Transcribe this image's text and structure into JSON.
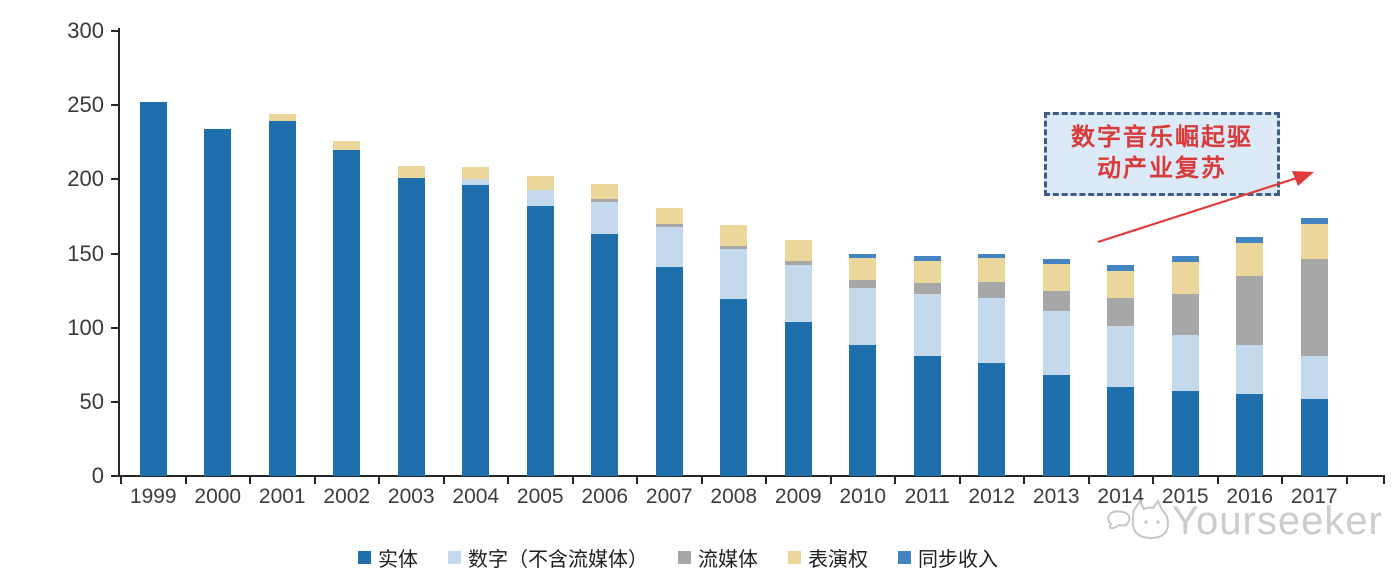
{
  "watermark": {
    "brand": "Yourseeker"
  },
  "annotation": {
    "line1": "数字音乐崛起驱",
    "line2": "动产业复苏",
    "text_color": "#d93a3a",
    "box_fill": "#dce9f6",
    "box_border": "#3f5e84",
    "arrow_color": "#e23b3b"
  },
  "chart_data": {
    "type": "bar",
    "stacked": true,
    "title": "",
    "xlabel": "",
    "ylabel": "",
    "ylim": [
      0,
      300
    ],
    "yticks": [
      0,
      50,
      100,
      150,
      200,
      250,
      300
    ],
    "grid": false,
    "legend_position": "bottom",
    "categories": [
      "1999",
      "2000",
      "2001",
      "2002",
      "2003",
      "2004",
      "2005",
      "2006",
      "2007",
      "2008",
      "2009",
      "2010",
      "2011",
      "2012",
      "2013",
      "2014",
      "2015",
      "2016",
      "2017"
    ],
    "series": [
      {
        "name": "实体",
        "color": "#1f6fac",
        "values": [
          252,
          234,
          239,
          220,
          201,
          196,
          182,
          163,
          141,
          119,
          104,
          88,
          81,
          76,
          68,
          60,
          57,
          55,
          52
        ]
      },
      {
        "name": "数字（不含流媒体）",
        "color": "#c4d9ec",
        "values": [
          0,
          0,
          0,
          0,
          0,
          4,
          11,
          22,
          27,
          34,
          38,
          39,
          42,
          44,
          43,
          41,
          38,
          33,
          29
        ]
      },
      {
        "name": "流媒体",
        "color": "#a7a7a7",
        "values": [
          0,
          0,
          0,
          0,
          0,
          0,
          0,
          2,
          2,
          2,
          3,
          5,
          7,
          11,
          14,
          19,
          28,
          47,
          65
        ]
      },
      {
        "name": "表演权",
        "color": "#ebd79b",
        "values": [
          0,
          0,
          5,
          6,
          8,
          8,
          9,
          10,
          11,
          14,
          14,
          15,
          15,
          16,
          18,
          18,
          21,
          22,
          24
        ]
      },
      {
        "name": "同步收入",
        "color": "#4485c1",
        "values": [
          0,
          0,
          0,
          0,
          0,
          0,
          0,
          0,
          0,
          0,
          0,
          3,
          3,
          3,
          3,
          4,
          4,
          4,
          4
        ]
      }
    ]
  }
}
